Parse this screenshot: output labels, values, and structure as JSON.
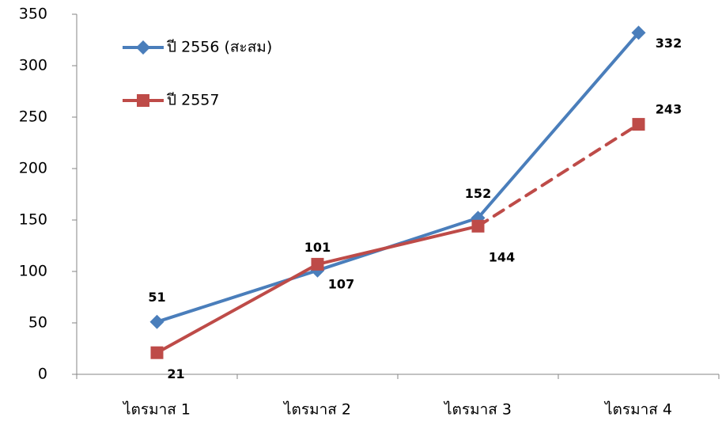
{
  "chart_data": {
    "type": "line",
    "categories": [
      "ไตรมาส 1",
      "ไตรมาส 2",
      "ไตรมาส 3",
      "ไตรมาส 4"
    ],
    "series": [
      {
        "name": "ปี 2556 (สะสม)",
        "color": "#4a7ebb",
        "marker": "diamond",
        "values": [
          51,
          101,
          152,
          332
        ],
        "segment_styles": [
          "solid",
          "solid",
          "solid"
        ]
      },
      {
        "name": "ปี 2557",
        "color": "#be4b48",
        "marker": "square",
        "values": [
          21,
          107,
          144,
          243
        ],
        "segment_styles": [
          "solid",
          "solid",
          "dashed"
        ]
      }
    ],
    "ylim": [
      0,
      350
    ],
    "yticks": [
      0,
      50,
      100,
      150,
      200,
      250,
      300,
      350
    ],
    "grid": false,
    "legend": "upper left"
  }
}
